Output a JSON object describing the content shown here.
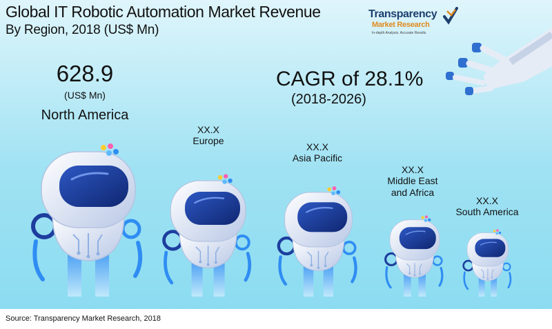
{
  "header": {
    "title": "Global IT Robotic Automation Market Revenue",
    "subtitle": "By Region, 2018 (US$ Mn)"
  },
  "logo": {
    "name": "Transparency",
    "sub": "Market Research",
    "tagline": "In-depth Analysis. Accurate Results"
  },
  "highlight": {
    "value": "628.9",
    "unit": "(US$ Mn)",
    "region": "North America"
  },
  "cagr": {
    "text": "CAGR of 28.1%",
    "period": "(2018-2026)"
  },
  "source": "Source: Transparency Market Research, 2018",
  "colors": {
    "background_top": "#dff5fb",
    "background_bottom": "#8cdcf1",
    "robot_body": "#dfe8f6",
    "visor": "#1d3e9e",
    "accent": "#2c7be5"
  },
  "chart_data": {
    "type": "bar",
    "title": "Global IT Robotic Automation Market Revenue",
    "subtitle": "By Region, 2018 (US$ Mn)",
    "categories": [
      "North America",
      "Europe",
      "Asia Pacific",
      "Middle East and Africa",
      "South America"
    ],
    "value_labels": [
      "628.9",
      "XX.X",
      "XX.X",
      "XX.X",
      "XX.X"
    ],
    "values": [
      628.9,
      null,
      null,
      null,
      null
    ],
    "unit": "US$ Mn",
    "annotation": "CAGR of 28.1% (2018-2026)"
  }
}
